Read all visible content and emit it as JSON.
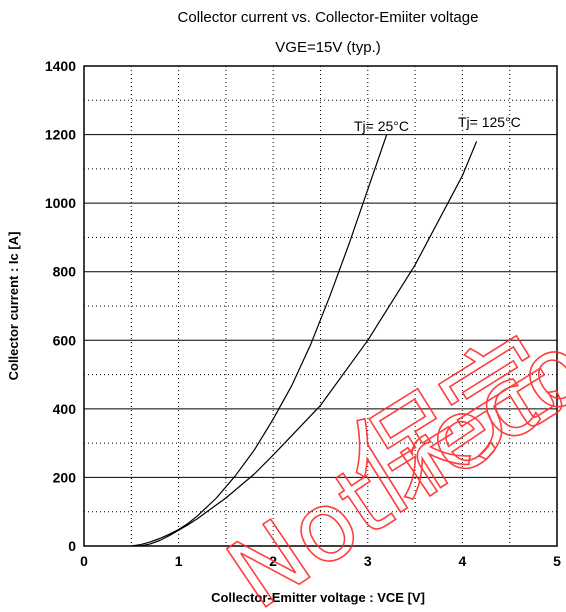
{
  "chart_data": {
    "type": "line",
    "title": "Collector current vs. Collector-Emiiter voltage",
    "subtitle": "VGE=15V (typ.)",
    "xlabel": "Collector-Emitter voltage : VCE [V]",
    "ylabel": "Collector current : Ic [A]",
    "xlim": [
      0,
      5
    ],
    "ylim": [
      0,
      1400
    ],
    "xticks": [
      0,
      1,
      2,
      3,
      4,
      5
    ],
    "yticks": [
      0,
      200,
      400,
      600,
      800,
      1000,
      1200,
      1400
    ],
    "grid": true,
    "series": [
      {
        "name": "Tj= 25°C",
        "x": [
          0.5,
          0.6,
          0.7,
          0.8,
          0.9,
          1.0,
          1.1,
          1.2,
          1.4,
          1.6,
          1.8,
          2.0,
          2.2,
          2.4,
          2.6,
          2.8,
          3.0,
          3.2
        ],
        "y": [
          0,
          4,
          12,
          22,
          34,
          48,
          66,
          88,
          140,
          205,
          280,
          370,
          470,
          590,
          730,
          880,
          1040,
          1200
        ]
      },
      {
        "name": "Tj= 125°C",
        "x": [
          0.6,
          0.7,
          0.8,
          0.9,
          1.0,
          1.1,
          1.2,
          1.5,
          1.8,
          2.0,
          2.5,
          3.0,
          3.5,
          4.0,
          4.15
        ],
        "y": [
          0,
          6,
          16,
          30,
          46,
          62,
          80,
          140,
          210,
          265,
          410,
          600,
          820,
          1080,
          1180
        ]
      }
    ],
    "annotations": [
      "Tj= 25°C",
      "Tj= 125°C"
    ]
  },
  "watermark": {
    "chinese": "保完",
    "latin": "Not recom"
  }
}
